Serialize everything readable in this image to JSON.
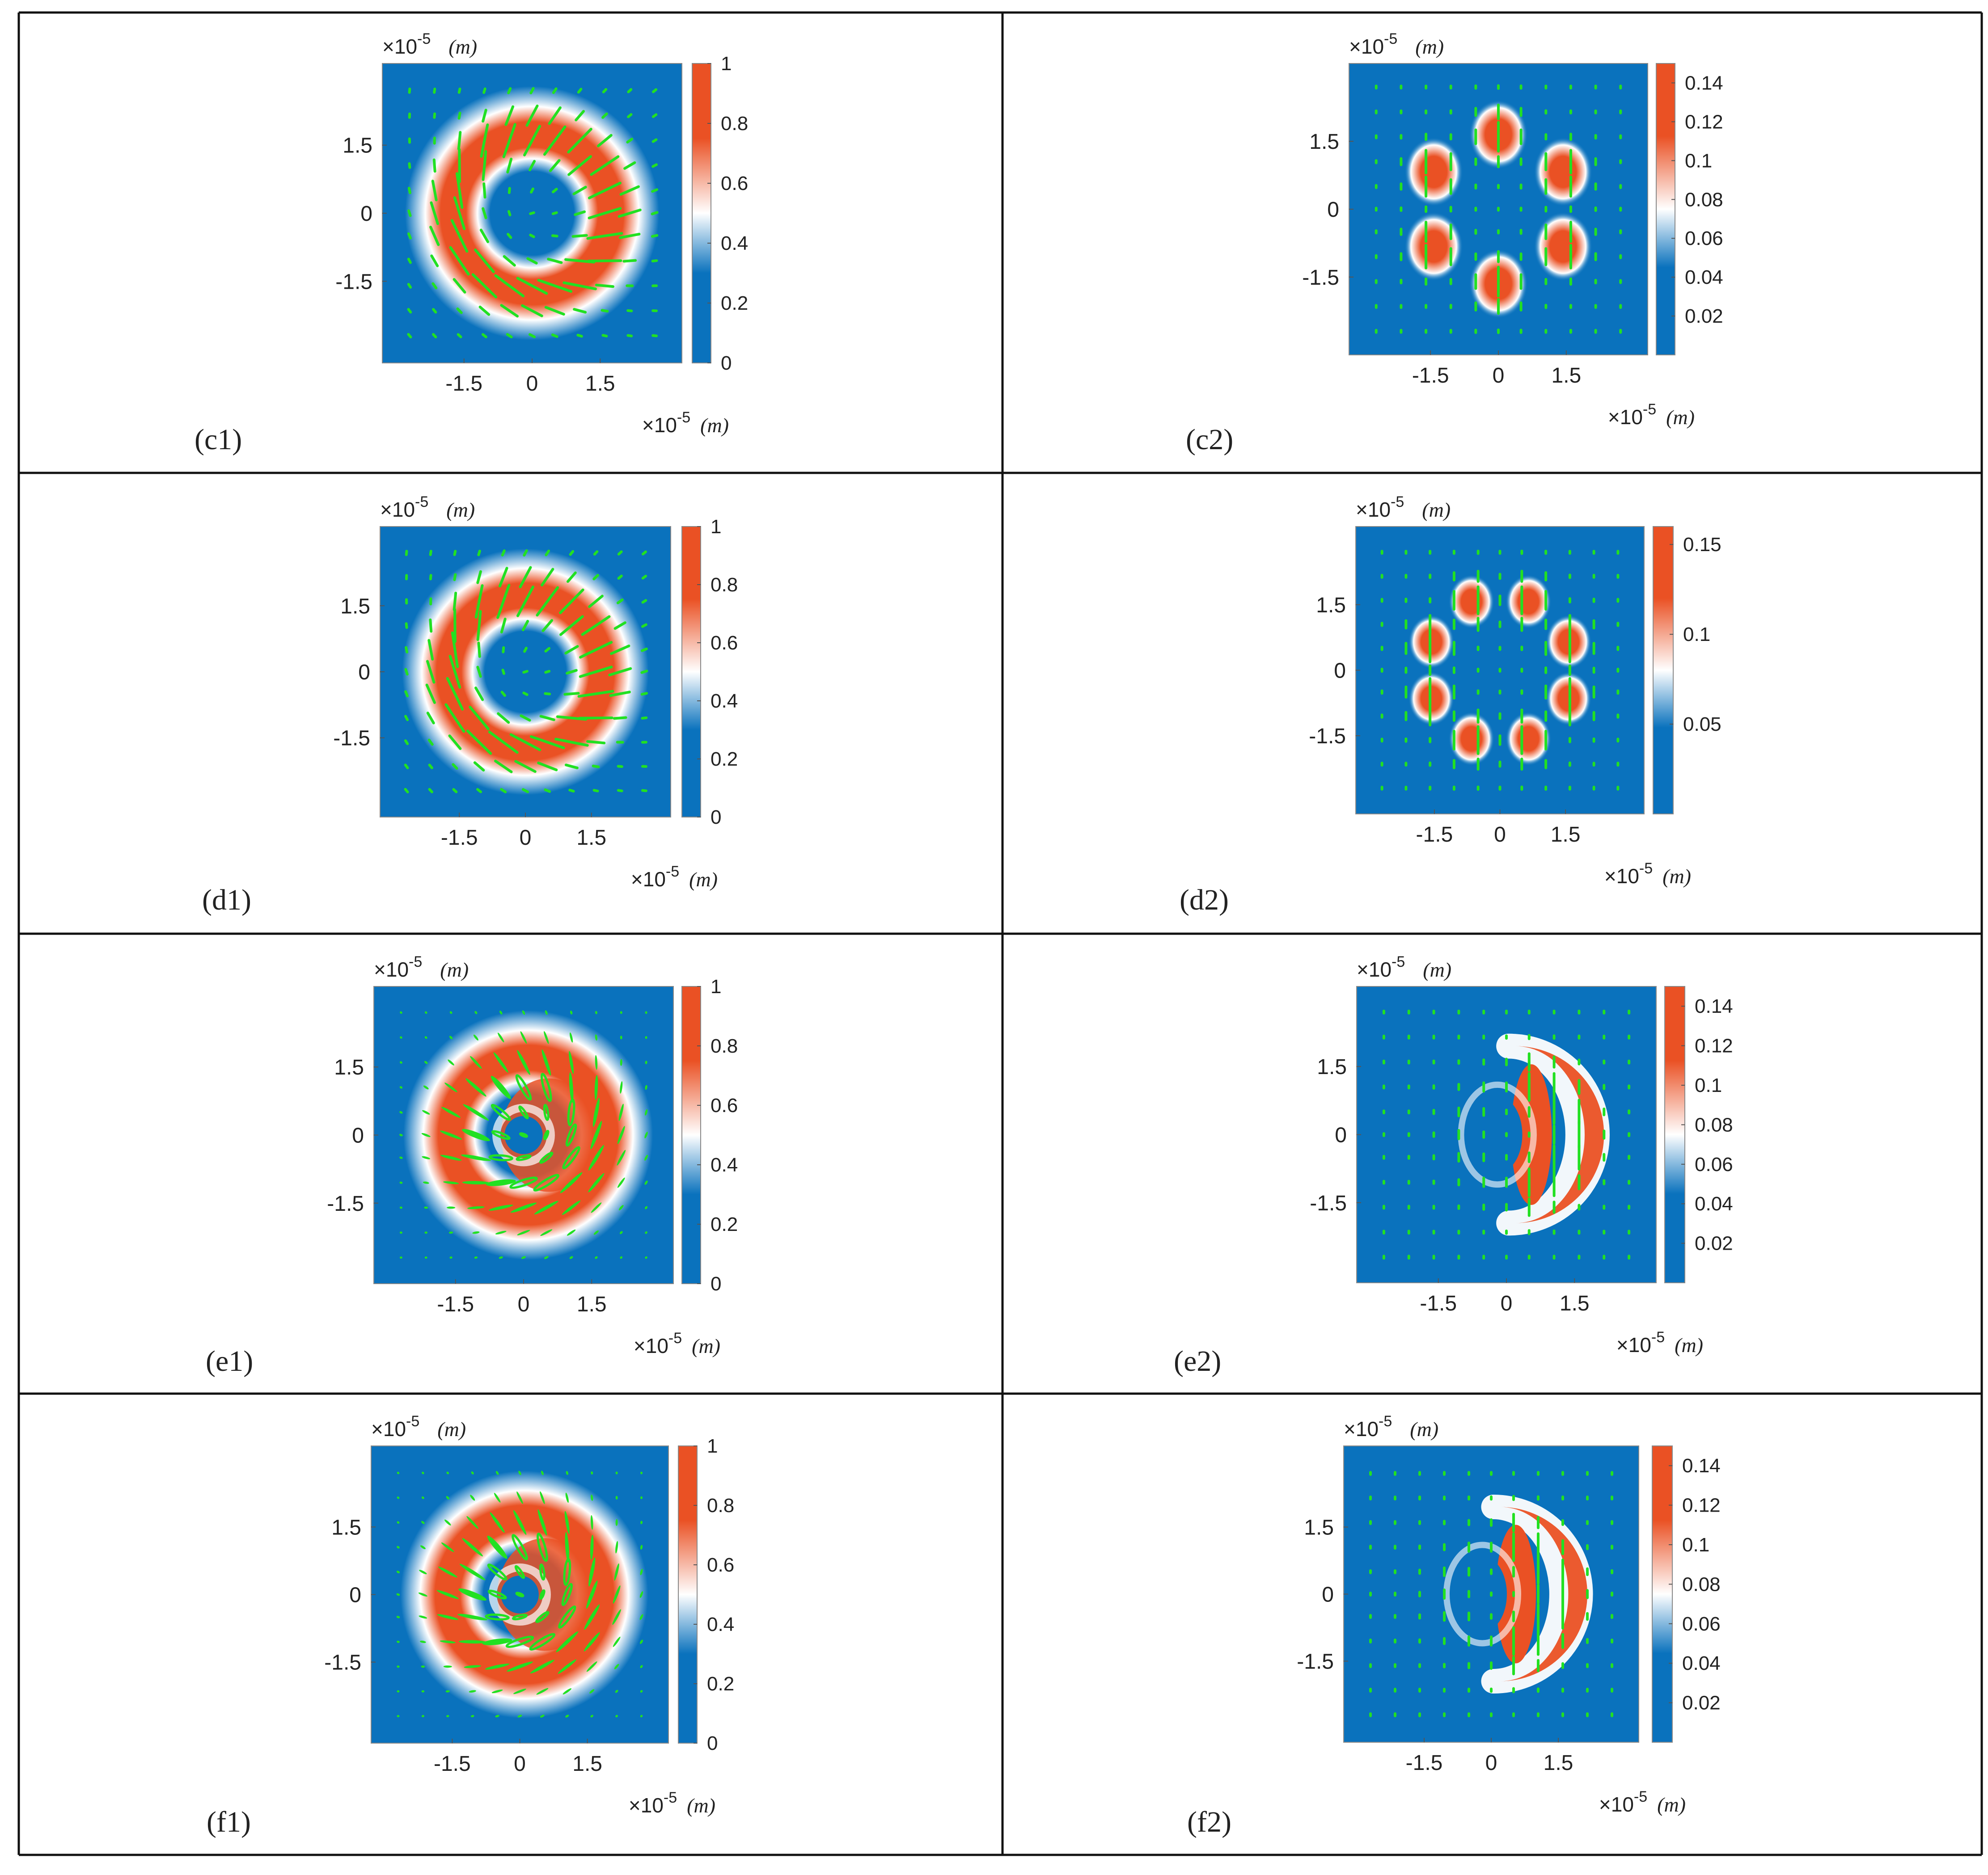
{
  "chart_data": [
    {
      "id": "c1",
      "type": "heatmap",
      "pattern": "ring",
      "petals": 0,
      "vectors": "rotated-lines",
      "panel_label": "(c1)",
      "x_exponent_label": "×10",
      "x_exponent": "-5",
      "y_exponent_label": "×10",
      "y_exponent": "-5",
      "unit": "(m)",
      "xticks": [
        "-1.5",
        "0",
        "1.5"
      ],
      "yticks": [
        "1.5",
        "0",
        "-1.5"
      ],
      "colorbar_ticks": [
        "1",
        "0.8",
        "0.6",
        "0.4",
        "0.2",
        "0"
      ],
      "colorbar_range": [
        0,
        1
      ],
      "colors": {
        "low": "#0a72bd",
        "mid": "#ffffff",
        "high": "#ea5124",
        "vector": "#22e022"
      }
    },
    {
      "id": "c2",
      "type": "heatmap",
      "pattern": "petals",
      "petals": 6,
      "vectors": "vertical-dashes",
      "panel_label": "(c2)",
      "x_exponent_label": "×10",
      "x_exponent": "-5",
      "y_exponent_label": "×10",
      "y_exponent": "-5",
      "unit": "(m)",
      "xticks": [
        "-1.5",
        "0",
        "1.5"
      ],
      "yticks": [
        "1.5",
        "0",
        "-1.5"
      ],
      "colorbar_ticks": [
        "0.14",
        "0.12",
        "0.1",
        "0.08",
        "0.06",
        "0.04",
        "0.02"
      ],
      "colorbar_range": [
        0,
        0.15
      ],
      "colors": {
        "low": "#0a72bd",
        "mid": "#ffffff",
        "high": "#ea5124",
        "vector": "#22e022"
      }
    },
    {
      "id": "d1",
      "type": "heatmap",
      "pattern": "ring",
      "petals": 0,
      "vectors": "rotated-lines",
      "panel_label": "(d1)",
      "x_exponent_label": "×10",
      "x_exponent": "-5",
      "y_exponent_label": "×10",
      "y_exponent": "-5",
      "unit": "(m)",
      "xticks": [
        "-1.5",
        "0",
        "1.5"
      ],
      "yticks": [
        "1.5",
        "0",
        "-1.5"
      ],
      "colorbar_ticks": [
        "1",
        "0.8",
        "0.6",
        "0.4",
        "0.2",
        "0"
      ],
      "colorbar_range": [
        0,
        1
      ],
      "colors": {
        "low": "#0a72bd",
        "mid": "#ffffff",
        "high": "#ea5124",
        "vector": "#22e022"
      }
    },
    {
      "id": "d2",
      "type": "heatmap",
      "pattern": "petals",
      "petals": 8,
      "vectors": "vertical-dashes",
      "panel_label": "(d2)",
      "x_exponent_label": "×10",
      "x_exponent": "-5",
      "y_exponent_label": "×10",
      "y_exponent": "-5",
      "unit": "(m)",
      "xticks": [
        "-1.5",
        "0",
        "1.5"
      ],
      "yticks": [
        "1.5",
        "0",
        "-1.5"
      ],
      "colorbar_ticks": [
        "0.15",
        "0.1",
        "0.05"
      ],
      "colorbar_range": [
        0,
        0.16
      ],
      "colors": {
        "low": "#0a72bd",
        "mid": "#ffffff",
        "high": "#ea5124",
        "vector": "#22e022"
      }
    },
    {
      "id": "e1",
      "type": "heatmap",
      "pattern": "offset-ring",
      "petals": 0,
      "vectors": "ellipses",
      "panel_label": "(e1)",
      "x_exponent_label": "×10",
      "x_exponent": "-5",
      "y_exponent_label": "×10",
      "y_exponent": "-5",
      "unit": "(m)",
      "xticks": [
        "-1.5",
        "0",
        "1.5"
      ],
      "yticks": [
        "1.5",
        "0",
        "-1.5"
      ],
      "colorbar_ticks": [
        "1",
        "0.8",
        "0.6",
        "0.4",
        "0.2",
        "0"
      ],
      "colorbar_range": [
        0,
        1
      ],
      "colors": {
        "low": "#0a72bd",
        "mid": "#ffffff",
        "high": "#ea5124",
        "vector": "#22e022"
      }
    },
    {
      "id": "e2",
      "type": "heatmap",
      "pattern": "crescent",
      "petals": 0,
      "vectors": "vertical-dashes",
      "panel_label": "(e2)",
      "x_exponent_label": "×10",
      "x_exponent": "-5",
      "y_exponent_label": "×10",
      "y_exponent": "-5",
      "unit": "(m)",
      "xticks": [
        "-1.5",
        "0",
        "1.5"
      ],
      "yticks": [
        "1.5",
        "0",
        "-1.5"
      ],
      "colorbar_ticks": [
        "0.14",
        "0.12",
        "0.1",
        "0.08",
        "0.06",
        "0.04",
        "0.02"
      ],
      "colorbar_range": [
        0,
        0.15
      ],
      "colors": {
        "low": "#0a72bd",
        "mid": "#ffffff",
        "high": "#ea5124",
        "vector": "#22e022"
      }
    },
    {
      "id": "f1",
      "type": "heatmap",
      "pattern": "offset-ring",
      "petals": 0,
      "vectors": "ellipses",
      "panel_label": "(f1)",
      "x_exponent_label": "×10",
      "x_exponent": "-5",
      "y_exponent_label": "×10",
      "y_exponent": "-5",
      "unit": "(m)",
      "xticks": [
        "-1.5",
        "0",
        "1.5"
      ],
      "yticks": [
        "1.5",
        "0",
        "-1.5"
      ],
      "colorbar_ticks": [
        "1",
        "0.8",
        "0.6",
        "0.4",
        "0.2",
        "0"
      ],
      "colorbar_range": [
        0,
        1
      ],
      "colors": {
        "low": "#0a72bd",
        "mid": "#ffffff",
        "high": "#ea5124",
        "vector": "#22e022"
      }
    },
    {
      "id": "f2",
      "type": "heatmap",
      "pattern": "crescent",
      "petals": 0,
      "vectors": "vertical-dashes",
      "panel_label": "(f2)",
      "x_exponent_label": "×10",
      "x_exponent": "-5",
      "y_exponent_label": "×10",
      "y_exponent": "-5",
      "unit": "(m)",
      "xticks": [
        "-1.5",
        "0",
        "1.5"
      ],
      "yticks": [
        "1.5",
        "0",
        "-1.5"
      ],
      "colorbar_ticks": [
        "0.14",
        "0.12",
        "0.1",
        "0.08",
        "0.06",
        "0.04",
        "0.02"
      ],
      "colorbar_range": [
        0,
        0.15
      ],
      "colors": {
        "low": "#0a72bd",
        "mid": "#ffffff",
        "high": "#ea5124",
        "vector": "#22e022"
      }
    }
  ]
}
